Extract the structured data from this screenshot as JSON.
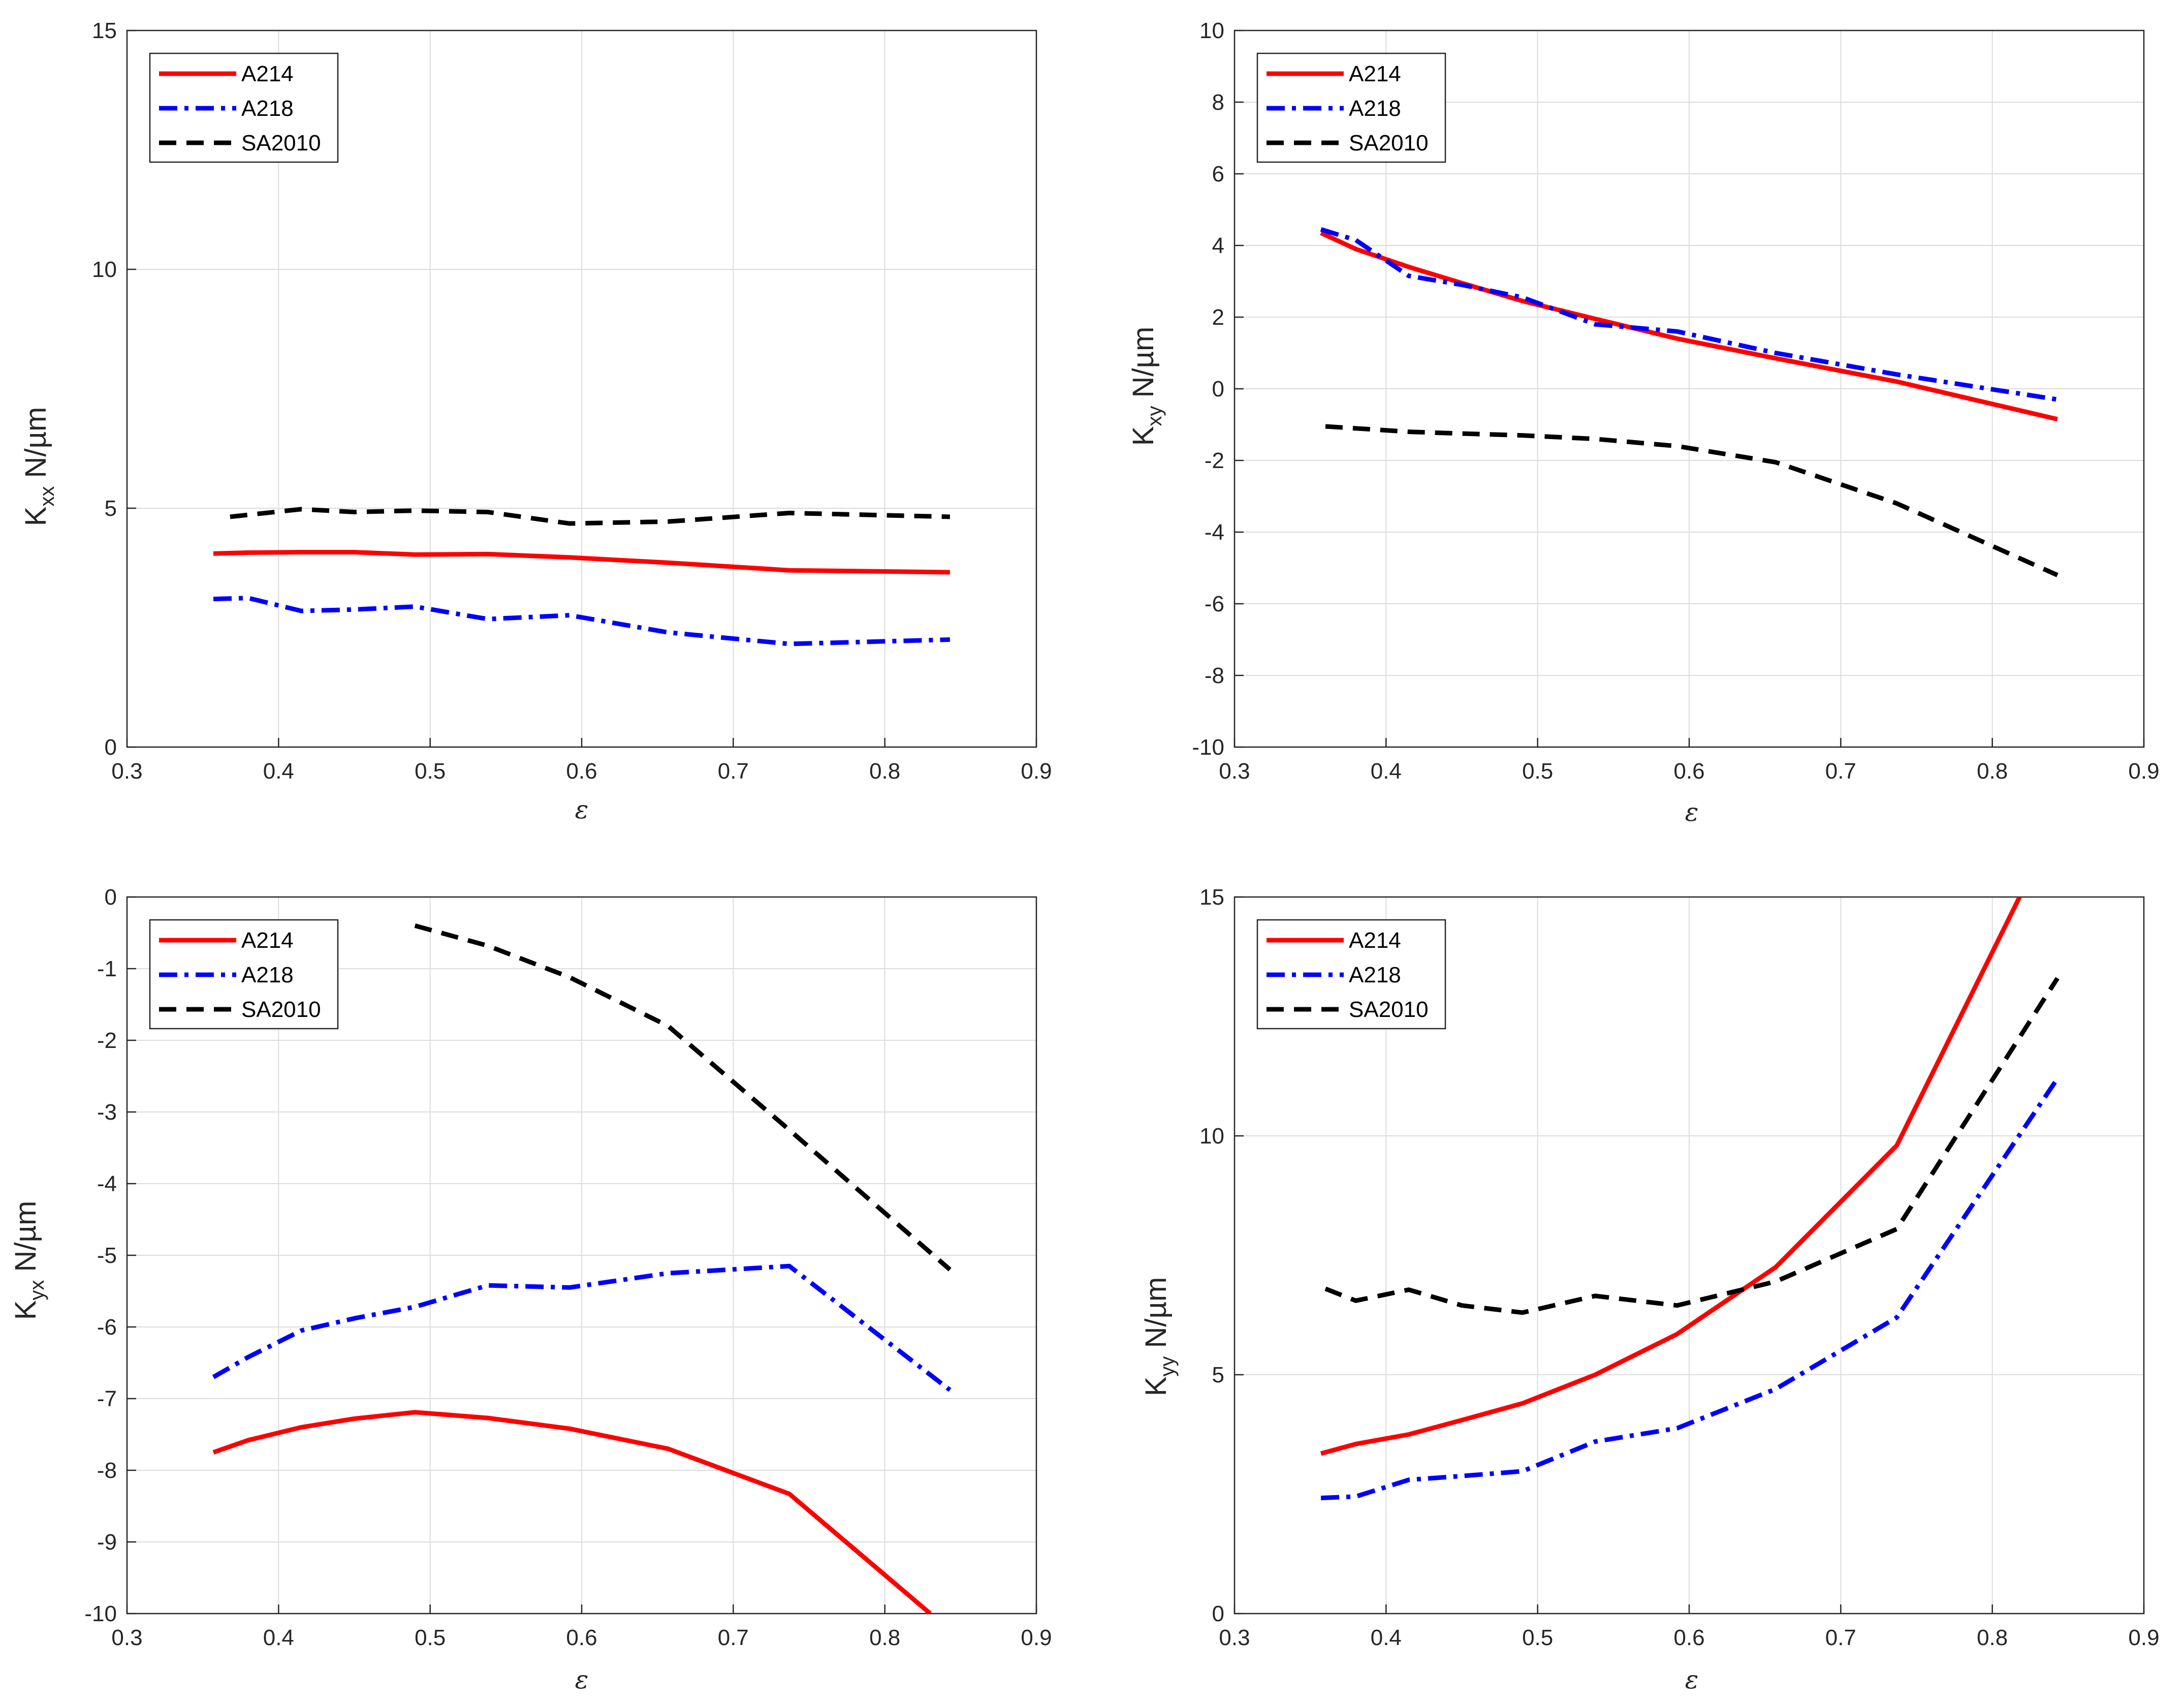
{
  "chart_data": [
    {
      "id": "kxx",
      "type": "line",
      "ylabel": {
        "main": "K",
        "sub": "xx",
        "unit": " N/µm"
      },
      "xlabel": "ε",
      "xlim": [
        0.3,
        0.9
      ],
      "ylim": [
        0,
        15
      ],
      "xticks": [
        0.3,
        0.4,
        0.5,
        0.6,
        0.7,
        0.8,
        0.9
      ],
      "xtick_labels": [
        "0.3",
        "0.4",
        "0.5",
        "0.6",
        "0.7",
        "0.8",
        "0.9"
      ],
      "yticks": [
        0,
        5,
        10,
        15
      ],
      "ytick_labels": [
        "0",
        "5",
        "10",
        "15"
      ],
      "grid": true,
      "legend_position": "top-left",
      "series": [
        {
          "name": "A214",
          "color": "#ff0000",
          "style": "solid",
          "x": [
            0.357,
            0.38,
            0.415,
            0.45,
            0.49,
            0.538,
            0.592,
            0.657,
            0.737,
            0.843
          ],
          "y": [
            4.05,
            4.07,
            4.08,
            4.08,
            4.03,
            4.04,
            3.97,
            3.86,
            3.7,
            3.66
          ]
        },
        {
          "name": "A218",
          "color": "#0000ff",
          "style": "dashdot",
          "x": [
            0.357,
            0.38,
            0.415,
            0.45,
            0.49,
            0.538,
            0.592,
            0.657,
            0.737,
            0.843
          ],
          "y": [
            3.1,
            3.12,
            2.85,
            2.88,
            2.94,
            2.68,
            2.76,
            2.4,
            2.16,
            2.25
          ]
        },
        {
          "name": "SA2010",
          "color": "#000000",
          "style": "dashed",
          "x": [
            0.368,
            0.415,
            0.45,
            0.49,
            0.538,
            0.592,
            0.657,
            0.737,
            0.843
          ],
          "y": [
            4.82,
            4.98,
            4.92,
            4.95,
            4.92,
            4.68,
            4.72,
            4.9,
            4.82
          ]
        }
      ]
    },
    {
      "id": "kxy",
      "type": "line",
      "ylabel": {
        "main": "K",
        "sub": "xy",
        "unit": " N/µm"
      },
      "xlabel": "ε",
      "xlim": [
        0.3,
        0.9
      ],
      "ylim": [
        -10,
        10
      ],
      "xticks": [
        0.3,
        0.4,
        0.5,
        0.6,
        0.7,
        0.8,
        0.9
      ],
      "xtick_labels": [
        "0.3",
        "0.4",
        "0.5",
        "0.6",
        "0.7",
        "0.8",
        "0.9"
      ],
      "yticks": [
        -10,
        -8,
        -6,
        -4,
        -2,
        0,
        2,
        4,
        6,
        8,
        10
      ],
      "ytick_labels": [
        "-10",
        "-8",
        "-6",
        "-4",
        "-2",
        "0",
        "2",
        "4",
        "6",
        "8",
        "10"
      ],
      "grid": true,
      "legend_position": "top-left",
      "series": [
        {
          "name": "A214",
          "color": "#ff0000",
          "style": "solid",
          "x": [
            0.357,
            0.38,
            0.415,
            0.45,
            0.49,
            0.538,
            0.592,
            0.657,
            0.737,
            0.843
          ],
          "y": [
            4.35,
            3.9,
            3.4,
            2.95,
            2.45,
            1.95,
            1.4,
            0.85,
            0.2,
            -0.85
          ]
        },
        {
          "name": "A218",
          "color": "#0000ff",
          "style": "dashdot",
          "x": [
            0.357,
            0.38,
            0.415,
            0.45,
            0.49,
            0.538,
            0.592,
            0.657,
            0.737,
            0.843
          ],
          "y": [
            4.45,
            4.15,
            3.15,
            2.9,
            2.55,
            1.8,
            1.6,
            1.0,
            0.4,
            -0.3
          ]
        },
        {
          "name": "SA2010",
          "color": "#000000",
          "style": "dashed",
          "x": [
            0.36,
            0.415,
            0.45,
            0.49,
            0.538,
            0.592,
            0.657,
            0.737,
            0.843
          ],
          "y": [
            -1.05,
            -1.2,
            -1.25,
            -1.3,
            -1.4,
            -1.6,
            -2.05,
            -3.2,
            -5.2
          ]
        }
      ]
    },
    {
      "id": "kyx",
      "type": "line",
      "ylabel": {
        "main": "K",
        "sub": "yx",
        "unit": " N/µm"
      },
      "xlabel": "ε",
      "xlim": [
        0.3,
        0.9
      ],
      "ylim": [
        -10,
        0
      ],
      "xticks": [
        0.3,
        0.4,
        0.5,
        0.6,
        0.7,
        0.8,
        0.9
      ],
      "xtick_labels": [
        "0.3",
        "0.4",
        "0.5",
        "0.6",
        "0.7",
        "0.8",
        "0.9"
      ],
      "yticks": [
        -10,
        -9,
        -8,
        -7,
        -6,
        -5,
        -4,
        -3,
        -2,
        -1,
        0
      ],
      "ytick_labels": [
        "-10",
        "-9",
        "-8",
        "-7",
        "-6",
        "-5",
        "-4",
        "-3",
        "-2",
        "-1",
        "0"
      ],
      "grid": true,
      "legend_position": "top-left",
      "series": [
        {
          "name": "A214",
          "color": "#ff0000",
          "style": "solid",
          "x": [
            0.357,
            0.38,
            0.415,
            0.45,
            0.49,
            0.538,
            0.592,
            0.657,
            0.737,
            0.83
          ],
          "y": [
            -7.75,
            -7.58,
            -7.4,
            -7.28,
            -7.19,
            -7.27,
            -7.42,
            -7.7,
            -8.33,
            -10.0
          ]
        },
        {
          "name": "A218",
          "color": "#0000ff",
          "style": "dashdot",
          "x": [
            0.357,
            0.38,
            0.415,
            0.45,
            0.49,
            0.538,
            0.592,
            0.657,
            0.737,
            0.843
          ],
          "y": [
            -6.7,
            -6.42,
            -6.05,
            -5.88,
            -5.72,
            -5.42,
            -5.45,
            -5.25,
            -5.15,
            -6.88
          ]
        },
        {
          "name": "SA2010",
          "color": "#000000",
          "style": "dashed",
          "x": [
            0.49,
            0.538,
            0.592,
            0.657,
            0.737,
            0.843
          ],
          "y": [
            -0.4,
            -0.68,
            -1.12,
            -1.8,
            -3.25,
            -5.2
          ]
        }
      ]
    },
    {
      "id": "kyy",
      "type": "line",
      "ylabel": {
        "main": "K",
        "sub": "yy",
        "unit": " N/µm"
      },
      "xlabel": "ε",
      "xlim": [
        0.3,
        0.9
      ],
      "ylim": [
        0,
        15
      ],
      "xticks": [
        0.3,
        0.4,
        0.5,
        0.6,
        0.7,
        0.8,
        0.9
      ],
      "xtick_labels": [
        "0.3",
        "0.4",
        "0.5",
        "0.6",
        "0.7",
        "0.8",
        "0.9"
      ],
      "yticks": [
        0,
        5,
        10,
        15
      ],
      "ytick_labels": [
        "0",
        "5",
        "10",
        "15"
      ],
      "grid": true,
      "legend_position": "top-left",
      "series": [
        {
          "name": "A214",
          "color": "#ff0000",
          "style": "solid",
          "x": [
            0.357,
            0.38,
            0.415,
            0.45,
            0.49,
            0.538,
            0.592,
            0.657,
            0.737,
            0.818
          ],
          "y": [
            3.35,
            3.55,
            3.75,
            4.05,
            4.4,
            5.0,
            5.85,
            7.25,
            9.8,
            15.0
          ]
        },
        {
          "name": "A218",
          "color": "#0000ff",
          "style": "dashdot",
          "x": [
            0.357,
            0.38,
            0.415,
            0.45,
            0.49,
            0.538,
            0.592,
            0.657,
            0.737,
            0.843
          ],
          "y": [
            2.42,
            2.45,
            2.8,
            2.88,
            2.98,
            3.6,
            3.88,
            4.7,
            6.2,
            11.2
          ]
        },
        {
          "name": "SA2010",
          "color": "#000000",
          "style": "dashed",
          "x": [
            0.36,
            0.38,
            0.415,
            0.45,
            0.49,
            0.538,
            0.592,
            0.657,
            0.737,
            0.843
          ],
          "y": [
            6.8,
            6.55,
            6.78,
            6.45,
            6.3,
            6.65,
            6.45,
            6.95,
            8.05,
            13.3
          ]
        }
      ]
    }
  ]
}
